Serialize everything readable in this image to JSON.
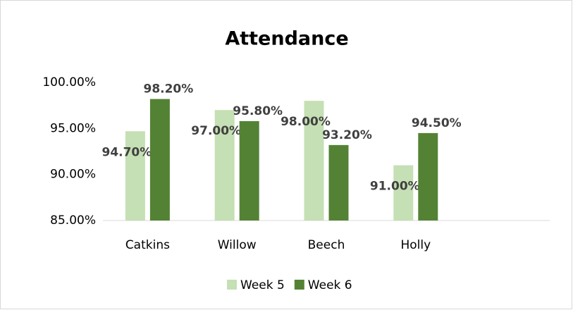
{
  "chart_data": {
    "type": "bar",
    "title": "Attendance",
    "categories": [
      "Catkins",
      "Willow",
      "Beech",
      "Holly",
      null
    ],
    "series": [
      {
        "name": "Week 5",
        "color": "#c5e0b4",
        "values": [
          94.7,
          97.0,
          98.0,
          91.0,
          null
        ],
        "value_labels": [
          "94.70%",
          "97.00%",
          "98.00%",
          "91.00%",
          null
        ]
      },
      {
        "name": "Week 6",
        "color": "#548235",
        "values": [
          98.2,
          95.8,
          93.2,
          94.5,
          null
        ],
        "value_labels": [
          "98.20%",
          "95.80%",
          "93.20%",
          "94.50%",
          null
        ]
      }
    ],
    "ylim": [
      85,
      100
    ],
    "yticks": [
      {
        "value": 85,
        "label": "85.00%"
      },
      {
        "value": 90,
        "label": "90.00%"
      },
      {
        "value": 95,
        "label": "95.00%"
      },
      {
        "value": 100,
        "label": "100.00%"
      }
    ],
    "grid": false,
    "legend": "bottom"
  }
}
